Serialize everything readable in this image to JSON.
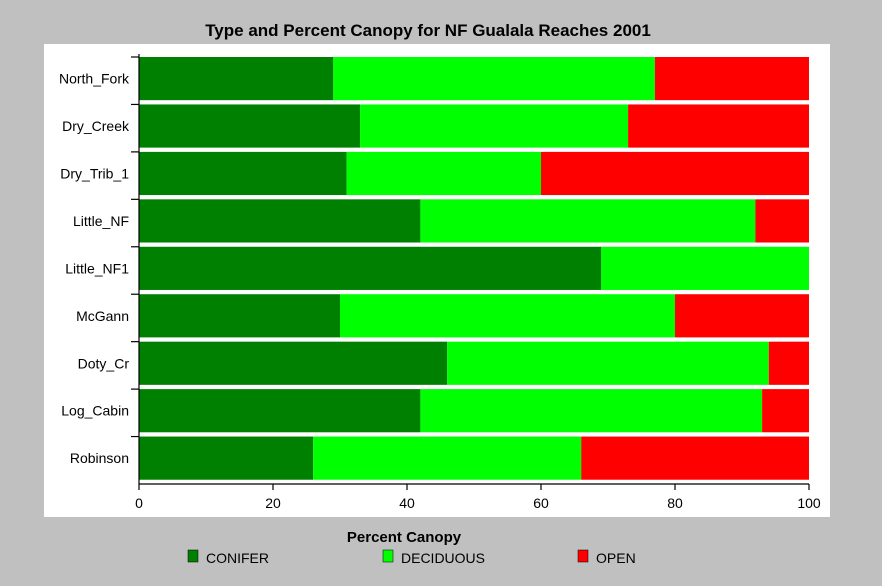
{
  "chart_data": {
    "type": "bar",
    "orientation": "horizontal",
    "stacked": true,
    "title": "Type and Percent Canopy for NF Gualala Reaches 2001",
    "xlabel": "Percent Canopy",
    "ylabel": "",
    "xlim": [
      0,
      100
    ],
    "xticks": [
      0,
      20,
      40,
      60,
      80,
      100
    ],
    "grid": false,
    "legend_position": "bottom",
    "categories": [
      "North_Fork",
      "Dry_Creek",
      "Dry_Trib_1",
      "Little_NF",
      "Little_NF1",
      "McGann",
      "Doty_Cr",
      "Log_Cabin",
      "Robinson"
    ],
    "series": [
      {
        "name": "CONIFER",
        "color": "#008000",
        "values": [
          29,
          33,
          31,
          42,
          69,
          30,
          46,
          42,
          26
        ]
      },
      {
        "name": "DECIDUOUS",
        "color": "#00ff00",
        "values": [
          48,
          40,
          29,
          50,
          31,
          50,
          48,
          51,
          40
        ]
      },
      {
        "name": "OPEN",
        "color": "#ff0000",
        "values": [
          23,
          27,
          40,
          8,
          0,
          20,
          6,
          7,
          34
        ]
      }
    ],
    "colors": {
      "plot_background": "#ffffff",
      "page_background": "#c0c0c0"
    }
  }
}
